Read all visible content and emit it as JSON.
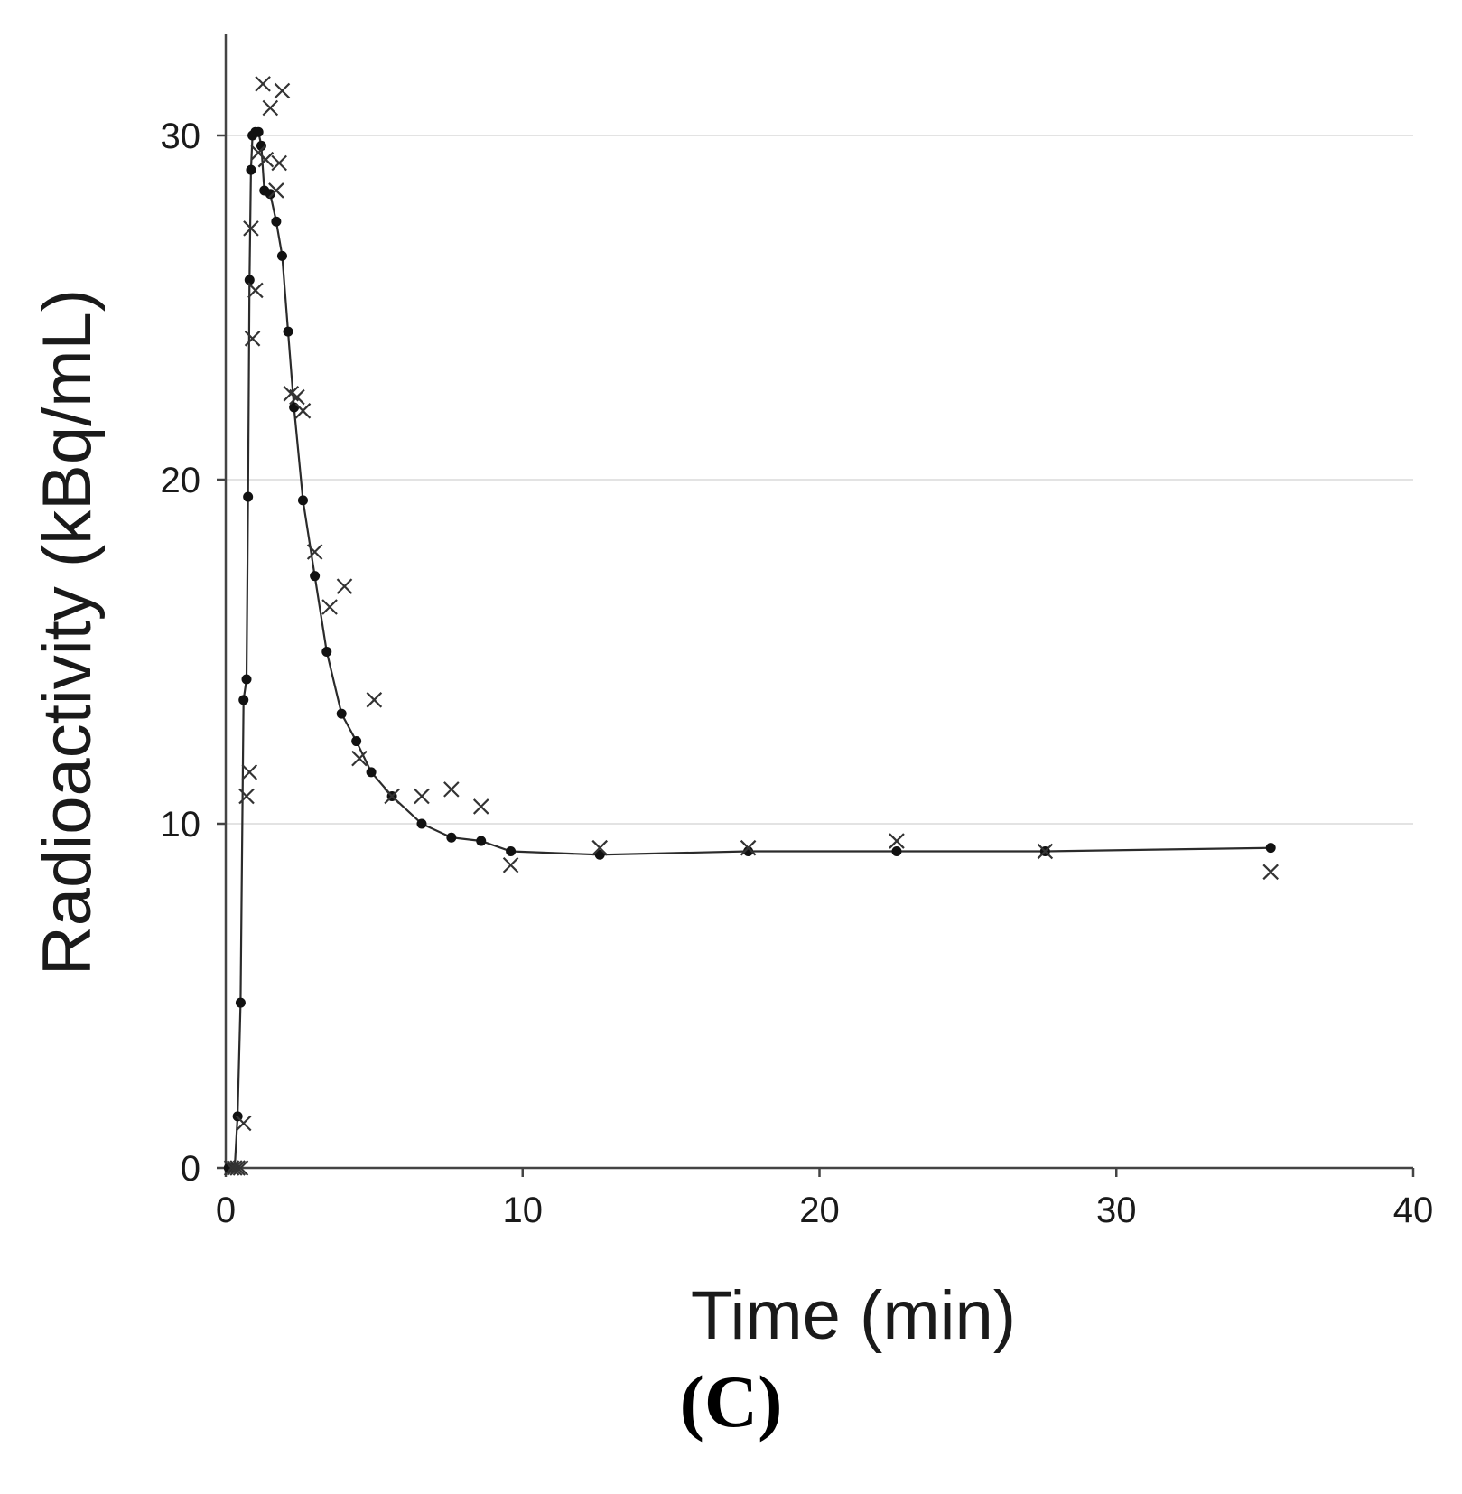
{
  "chart_data": {
    "type": "scatter",
    "title": "",
    "xlabel": "Time (min)",
    "ylabel": "Radioactivity (kBq/mL)",
    "xlim": [
      0,
      40
    ],
    "ylim": [
      0,
      33
    ],
    "xticks": [
      0,
      10,
      20,
      30,
      40
    ],
    "yticks": [
      0,
      10,
      20,
      30
    ],
    "grid": "horizontal",
    "legend": "none",
    "colors": {
      "line": "#2b2b2b",
      "grid": "#e3e3e3",
      "axis": "#444444"
    },
    "series": [
      {
        "marker": "dot",
        "line": true,
        "x": [
          0.1,
          0.2,
          0.3,
          0.4,
          0.5,
          0.6,
          0.7,
          0.75,
          0.8,
          0.85,
          0.9,
          1.0,
          1.1,
          1.2,
          1.3,
          1.5,
          1.7,
          1.9,
          2.1,
          2.3,
          2.6,
          3.0,
          3.4,
          3.9,
          4.4,
          4.9,
          5.6,
          6.6,
          7.6,
          8.6,
          9.6,
          12.6,
          17.6,
          22.6,
          27.6,
          35.2
        ],
        "y": [
          0,
          0,
          0,
          1.5,
          4.8,
          13.6,
          14.2,
          19.5,
          25.8,
          29.0,
          30.0,
          30.1,
          30.1,
          29.7,
          28.4,
          28.3,
          27.5,
          26.5,
          24.3,
          22.1,
          19.4,
          17.2,
          15.0,
          13.2,
          12.4,
          11.5,
          10.8,
          10.0,
          9.6,
          9.5,
          9.2,
          9.1,
          9.2,
          9.2,
          9.2,
          9.3
        ],
        "x_fit_note": ""
      },
      {
        "marker": "cross",
        "line": false,
        "x": [
          0.2,
          0.3,
          0.4,
          0.5,
          0.6,
          0.7,
          0.8,
          0.85,
          0.9,
          1.0,
          1.1,
          1.25,
          1.35,
          1.5,
          1.7,
          1.8,
          1.9,
          2.2,
          2.4,
          2.6,
          3.0,
          3.5,
          4.0,
          4.5,
          5.0,
          5.6,
          6.6,
          7.6,
          8.6,
          9.6,
          12.6,
          17.6,
          22.6,
          27.6,
          35.2
        ],
        "y": [
          0,
          0,
          0,
          0,
          1.3,
          10.8,
          11.5,
          27.3,
          24.1,
          25.5,
          29.5,
          31.5,
          29.3,
          30.8,
          28.4,
          29.2,
          31.3,
          22.5,
          22.4,
          22.0,
          17.9,
          16.3,
          16.9,
          11.9,
          13.6,
          10.8,
          10.8,
          11.0,
          10.5,
          8.8,
          9.3,
          9.3,
          9.5,
          9.2,
          8.6
        ]
      }
    ]
  },
  "panel_label": "(C)"
}
